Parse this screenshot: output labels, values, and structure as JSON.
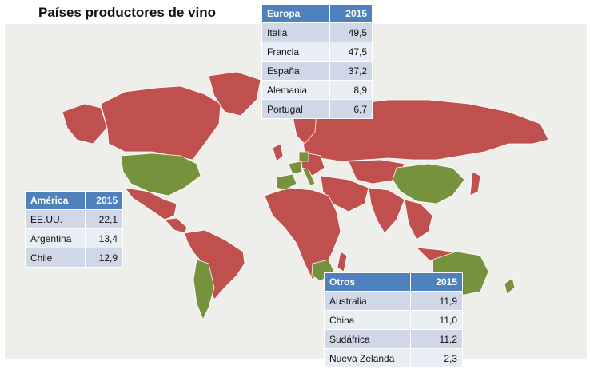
{
  "title": "Países productores de vino",
  "colors": {
    "producer": "#76923c",
    "other": "#c0504d",
    "header": "#4f81bd",
    "row_odd": "#d0d8e8",
    "row_even": "#e9edf4",
    "background": "#eeeeea"
  },
  "tables": {
    "europa": {
      "header": [
        "Europa",
        "2015"
      ],
      "rows": [
        {
          "country": "Italia",
          "value": "49,5"
        },
        {
          "country": "Francia",
          "value": "47,5"
        },
        {
          "country": "España",
          "value": "37,2"
        },
        {
          "country": "Alemania",
          "value": "8,9"
        },
        {
          "country": "Portugal",
          "value": "6,7"
        }
      ]
    },
    "america": {
      "header": [
        "América",
        "2015"
      ],
      "rows": [
        {
          "country": "EE.UU.",
          "value": "22,1"
        },
        {
          "country": "Argentina",
          "value": "13,4"
        },
        {
          "country": "Chile",
          "value": "12,9"
        }
      ]
    },
    "otros": {
      "header": [
        "Otros",
        "2015"
      ],
      "rows": [
        {
          "country": "Australia",
          "value": "11,9"
        },
        {
          "country": "China",
          "value": "11,0"
        },
        {
          "country": "Sudáfrica",
          "value": "11,2"
        },
        {
          "country": "Nueva Zelanda",
          "value": "2,3"
        }
      ]
    }
  },
  "map": {
    "highlighted_regions": [
      "usa",
      "argentina-chile",
      "europe-producers",
      "china",
      "south-africa",
      "australia",
      "new-zealand"
    ]
  }
}
